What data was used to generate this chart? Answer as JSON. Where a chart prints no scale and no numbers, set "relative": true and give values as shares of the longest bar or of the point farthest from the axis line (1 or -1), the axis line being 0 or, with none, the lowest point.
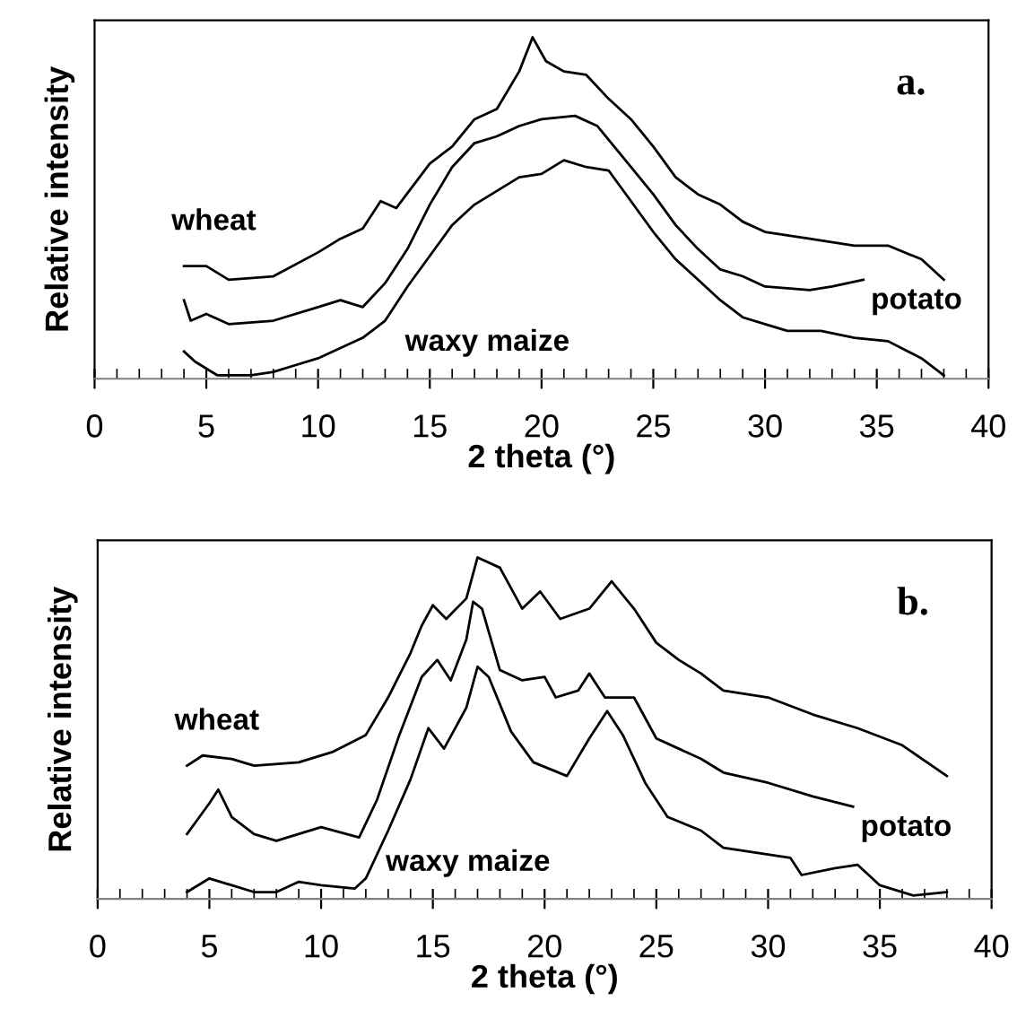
{
  "chart_data": [
    {
      "type": "line",
      "relative": true,
      "xlabel": "2 theta (°)",
      "ylabel": "Relative intensity",
      "annotations": [
        "a."
      ],
      "xlim": [
        0,
        40
      ],
      "tick_labels": "x",
      "marker": "none",
      "line_style": "solid",
      "grid": false,
      "legend": false,
      "xticks": [
        0,
        {
          "value": 1,
          "label": null
        },
        {
          "value": 2,
          "label": null
        },
        {
          "value": 3,
          "label": null
        },
        {
          "value": 4,
          "label": null
        },
        5,
        {
          "value": 6,
          "label": null
        },
        {
          "value": 7,
          "label": null
        },
        {
          "value": 8,
          "label": null
        },
        {
          "value": 9,
          "label": null
        },
        10,
        {
          "value": 11,
          "label": null
        },
        {
          "value": 12,
          "label": null
        },
        {
          "value": 13,
          "label": null
        },
        {
          "value": 14,
          "label": null
        },
        15,
        {
          "value": 16,
          "label": null
        },
        {
          "value": 17,
          "label": null
        },
        {
          "value": 18,
          "label": null
        },
        {
          "value": 19,
          "label": null
        },
        20,
        {
          "value": 21,
          "label": null
        },
        {
          "value": 22,
          "label": null
        },
        {
          "value": 23,
          "label": null
        },
        {
          "value": 24,
          "label": null
        },
        25,
        {
          "value": 26,
          "label": null
        },
        {
          "value": 27,
          "label": null
        },
        {
          "value": 28,
          "label": null
        },
        {
          "value": 29,
          "label": null
        },
        30,
        {
          "value": 31,
          "label": null
        },
        {
          "value": 32,
          "label": null
        },
        {
          "value": 33,
          "label": null
        },
        {
          "value": 34,
          "label": null
        },
        35,
        {
          "value": 36,
          "label": null
        },
        {
          "value": 37,
          "label": null
        },
        {
          "value": 38,
          "label": null
        },
        {
          "value": 39,
          "label": null
        },
        40
      ],
      "series": [
        {
          "name": "wheat",
          "color": "#000000",
          "x": [
            4,
            5,
            6,
            8,
            10,
            11,
            12,
            12.8,
            13.5,
            15,
            16,
            17,
            18,
            19,
            19.6,
            20.2,
            21,
            22,
            23,
            24,
            25,
            26,
            27,
            28,
            29,
            30,
            32,
            34,
            35.5,
            37,
            38
          ],
          "values": [
            0.33,
            0.33,
            0.29,
            0.3,
            0.37,
            0.41,
            0.44,
            0.52,
            0.5,
            0.63,
            0.68,
            0.76,
            0.79,
            0.9,
            1.0,
            0.93,
            0.9,
            0.89,
            0.82,
            0.76,
            0.68,
            0.59,
            0.54,
            0.51,
            0.46,
            0.43,
            0.41,
            0.39,
            0.39,
            0.35,
            0.29
          ]
        },
        {
          "name": "potato",
          "color": "#000000",
          "x": [
            4,
            4.3,
            5,
            6,
            8,
            10,
            11,
            12,
            13,
            14,
            15,
            16,
            17,
            18,
            19,
            20,
            21.5,
            22.5,
            24,
            25,
            26,
            27,
            28,
            29,
            30,
            32,
            33,
            34.4
          ],
          "values": [
            0.23,
            0.17,
            0.19,
            0.16,
            0.17,
            0.21,
            0.23,
            0.21,
            0.28,
            0.38,
            0.51,
            0.62,
            0.69,
            0.71,
            0.74,
            0.76,
            0.77,
            0.74,
            0.62,
            0.54,
            0.45,
            0.38,
            0.32,
            0.3,
            0.27,
            0.26,
            0.27,
            0.29
          ]
        },
        {
          "name": "waxy maize",
          "color": "#000000",
          "x": [
            4,
            4.5,
            5.5,
            7,
            8,
            9,
            10,
            12,
            13,
            14,
            15,
            16,
            17,
            18,
            19,
            20,
            21,
            22,
            23,
            24,
            25,
            26,
            27,
            28,
            29,
            30,
            31,
            32.5,
            34,
            35.5,
            37,
            38
          ],
          "values": [
            0.08,
            0.05,
            0.01,
            0.01,
            0.02,
            0.04,
            0.06,
            0.12,
            0.17,
            0.27,
            0.36,
            0.45,
            0.51,
            0.55,
            0.59,
            0.6,
            0.64,
            0.62,
            0.61,
            0.52,
            0.43,
            0.35,
            0.29,
            0.23,
            0.18,
            0.16,
            0.14,
            0.14,
            0.12,
            0.11,
            0.06,
            0.01
          ]
        }
      ]
    },
    {
      "type": "line",
      "relative": true,
      "xlabel": "2 theta (°)",
      "ylabel": "Relative intensity",
      "annotations": [
        "b."
      ],
      "xlim": [
        0,
        40
      ],
      "tick_labels": "x",
      "marker": "none",
      "line_style": "solid",
      "grid": false,
      "legend": false,
      "xticks": [
        0,
        {
          "value": 1,
          "label": null
        },
        {
          "value": 2,
          "label": null
        },
        {
          "value": 3,
          "label": null
        },
        {
          "value": 4,
          "label": null
        },
        5,
        {
          "value": 6,
          "label": null
        },
        {
          "value": 7,
          "label": null
        },
        {
          "value": 8,
          "label": null
        },
        {
          "value": 9,
          "label": null
        },
        10,
        {
          "value": 11,
          "label": null
        },
        {
          "value": 12,
          "label": null
        },
        {
          "value": 13,
          "label": null
        },
        {
          "value": 14,
          "label": null
        },
        15,
        {
          "value": 16,
          "label": null
        },
        {
          "value": 17,
          "label": null
        },
        {
          "value": 18,
          "label": null
        },
        {
          "value": 19,
          "label": null
        },
        20,
        {
          "value": 21,
          "label": null
        },
        {
          "value": 22,
          "label": null
        },
        {
          "value": 23,
          "label": null
        },
        {
          "value": 24,
          "label": null
        },
        25,
        {
          "value": 26,
          "label": null
        },
        {
          "value": 27,
          "label": null
        },
        {
          "value": 28,
          "label": null
        },
        {
          "value": 29,
          "label": null
        },
        30,
        {
          "value": 31,
          "label": null
        },
        {
          "value": 32,
          "label": null
        },
        {
          "value": 33,
          "label": null
        },
        {
          "value": 34,
          "label": null
        },
        35,
        {
          "value": 36,
          "label": null
        },
        {
          "value": 37,
          "label": null
        },
        {
          "value": 38,
          "label": null
        },
        {
          "value": 39,
          "label": null
        },
        40
      ],
      "series": [
        {
          "name": "wheat",
          "color": "#000000",
          "x": [
            4,
            4.7,
            6,
            7,
            9,
            10.5,
            12,
            13,
            14,
            14.5,
            15,
            15.6,
            16.5,
            17,
            18,
            19,
            19.8,
            20.7,
            22,
            23,
            24,
            25,
            26,
            27,
            28,
            30,
            32,
            34,
            36,
            38
          ],
          "values": [
            0.39,
            0.42,
            0.41,
            0.39,
            0.4,
            0.43,
            0.48,
            0.59,
            0.72,
            0.8,
            0.86,
            0.82,
            0.88,
            1.0,
            0.97,
            0.85,
            0.9,
            0.82,
            0.85,
            0.93,
            0.85,
            0.75,
            0.7,
            0.66,
            0.61,
            0.59,
            0.54,
            0.5,
            0.45,
            0.36
          ]
        },
        {
          "name": "potato",
          "color": "#000000",
          "x": [
            4,
            5,
            5.4,
            6,
            7,
            8,
            10,
            11.7,
            12.5,
            13.5,
            14.5,
            15.2,
            15.8,
            16.5,
            16.8,
            17.2,
            18,
            19,
            20,
            20.5,
            21.5,
            22,
            22.7,
            24,
            25,
            26,
            27,
            28,
            30,
            32,
            33.8
          ],
          "values": [
            0.19,
            0.28,
            0.32,
            0.24,
            0.19,
            0.17,
            0.21,
            0.18,
            0.29,
            0.48,
            0.65,
            0.7,
            0.64,
            0.76,
            0.87,
            0.85,
            0.67,
            0.64,
            0.65,
            0.59,
            0.61,
            0.66,
            0.59,
            0.59,
            0.47,
            0.44,
            0.41,
            0.37,
            0.34,
            0.3,
            0.27
          ]
        },
        {
          "name": "waxy maize",
          "color": "#000000",
          "x": [
            4,
            5,
            6,
            7,
            8,
            9,
            10,
            11.5,
            12,
            13,
            14,
            14.8,
            15.5,
            16.5,
            17,
            17.5,
            18.5,
            19.5,
            21,
            22,
            22.8,
            23.5,
            24.5,
            25.5,
            27,
            28,
            30,
            31,
            31.5,
            33,
            34,
            35,
            36.5,
            38
          ],
          "values": [
            0.02,
            0.06,
            0.04,
            0.02,
            0.02,
            0.05,
            0.04,
            0.03,
            0.06,
            0.2,
            0.35,
            0.5,
            0.44,
            0.56,
            0.68,
            0.65,
            0.49,
            0.4,
            0.36,
            0.47,
            0.55,
            0.48,
            0.34,
            0.24,
            0.2,
            0.15,
            0.13,
            0.12,
            0.07,
            0.09,
            0.1,
            0.04,
            0.01,
            0.02
          ]
        }
      ]
    }
  ]
}
